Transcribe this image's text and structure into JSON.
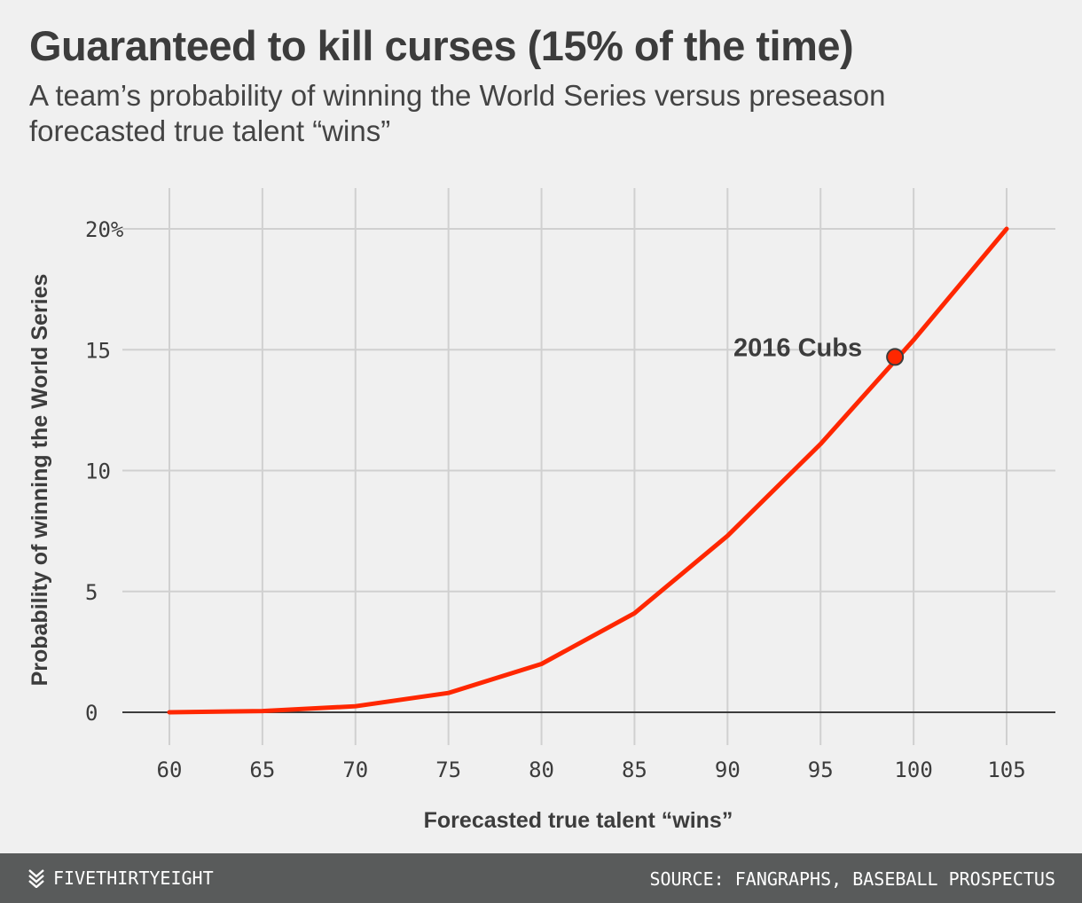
{
  "header": {
    "title": "Guaranteed to kill curses (15% of the time)",
    "subtitle": "A team’s probability of winning the World Series versus preseason forecasted true talent “wins”"
  },
  "footer": {
    "brand": "FIVETHIRTYEIGHT",
    "source": "SOURCE: FANGRAPHS, BASEBALL PROSPECTUS",
    "brand_icon": "fivethirtyeight-logo-icon"
  },
  "chart_data": {
    "type": "line",
    "title": "Guaranteed to kill curses (15% of the time)",
    "subtitle": "A team’s probability of winning the World Series versus preseason forecasted true talent “wins”",
    "xlabel": "Forecasted true talent “wins”",
    "ylabel": "Probability of winning the World Series",
    "xlim": [
      60,
      105
    ],
    "ylim": [
      0,
      20
    ],
    "xticks": [
      60,
      65,
      70,
      75,
      80,
      85,
      90,
      95,
      100,
      105
    ],
    "xtick_labels": [
      "60",
      "65",
      "70",
      "75",
      "80",
      "85",
      "90",
      "95",
      "100",
      "105"
    ],
    "yticks": [
      0,
      5,
      10,
      15,
      20
    ],
    "ytick_labels": [
      "0",
      "5",
      "10",
      "15",
      "20%"
    ],
    "grid": true,
    "series": [
      {
        "color": "#ff2700",
        "x": [
          60,
          65,
          70,
          75,
          80,
          85,
          90,
          95,
          100,
          105
        ],
        "y": [
          0.0,
          0.05,
          0.25,
          0.8,
          2.0,
          4.1,
          7.3,
          11.1,
          15.4,
          20.0
        ]
      }
    ],
    "annotations": [
      {
        "label": "2016 Cubs",
        "x": 99,
        "y": 14.7,
        "marker_color": "#ff2700"
      }
    ]
  }
}
